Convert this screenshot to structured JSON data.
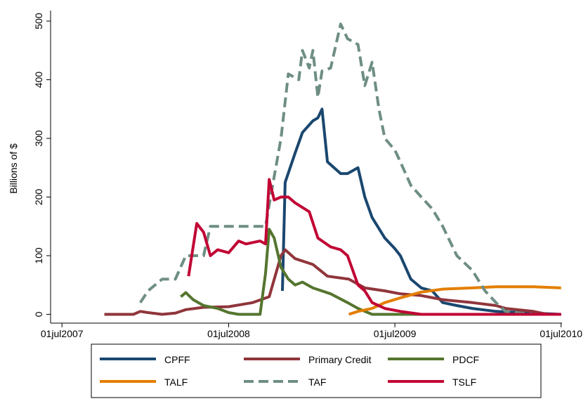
{
  "chart_data": {
    "type": "line",
    "y_label": "Billions of $",
    "xlim": [
      "2007-06-06",
      "2010-07-03"
    ],
    "xticks": [
      {
        "value": "2007-07-01",
        "label": "01jul2007"
      },
      {
        "value": "2008-07-01",
        "label": "01jul2008"
      },
      {
        "value": "2009-07-01",
        "label": "01jul2009"
      },
      {
        "value": "2010-07-01",
        "label": "01jul2010"
      }
    ],
    "ylim": [
      -15,
      518
    ],
    "yticks": [
      0,
      100,
      200,
      300,
      400,
      500
    ],
    "legend": "bottom",
    "series": [
      {
        "name": "CPFF",
        "color": "#1a476f",
        "dashed": false,
        "x": [
          "2008-10-27",
          "2008-11-02",
          "2008-11-24",
          "2008-12-10",
          "2009-01-02",
          "2009-01-13",
          "2009-01-22",
          "2009-02-03",
          "2009-03-04",
          "2009-03-19",
          "2009-04-11",
          "2009-04-26",
          "2009-05-12",
          "2009-06-09",
          "2009-07-01",
          "2009-07-13",
          "2009-08-05",
          "2009-08-28",
          "2009-09-21",
          "2009-10-14",
          "2009-11-14",
          "2009-12-18",
          "2010-02-08",
          "2010-05-01",
          "2010-07-01"
        ],
        "values": [
          40,
          225,
          275,
          310,
          330,
          335,
          350,
          260,
          240,
          240,
          250,
          200,
          165,
          130,
          112,
          100,
          60,
          45,
          40,
          20,
          15,
          10,
          5,
          2,
          0
        ]
      },
      {
        "name": "Primary Credit",
        "color": "#90353b",
        "dashed": false,
        "x": [
          "2007-10-02",
          "2007-12-05",
          "2007-12-20",
          "2008-01-06",
          "2008-02-06",
          "2008-03-06",
          "2008-03-29",
          "2008-05-07",
          "2008-07-01",
          "2008-08-23",
          "2008-09-28",
          "2008-10-24",
          "2008-11-02",
          "2008-11-24",
          "2009-01-02",
          "2009-02-03",
          "2009-03-22",
          "2009-04-26",
          "2009-06-09",
          "2009-07-13",
          "2009-08-28",
          "2009-10-14",
          "2009-12-18",
          "2010-02-08",
          "2010-03-01",
          "2010-05-01",
          "2010-06-01",
          "2010-07-01"
        ],
        "values": [
          0,
          0,
          5,
          3,
          0,
          2,
          8,
          12,
          13,
          20,
          30,
          100,
          110,
          95,
          85,
          65,
          60,
          45,
          40,
          35,
          32,
          25,
          20,
          15,
          10,
          5,
          0,
          0
        ]
      },
      {
        "name": "PDCF",
        "color": "#55752f",
        "dashed": false,
        "x": [
          "2008-03-18",
          "2008-03-29",
          "2008-04-14",
          "2008-05-07",
          "2008-06-07",
          "2008-07-01",
          "2008-07-23",
          "2008-09-08",
          "2008-09-20",
          "2008-09-28",
          "2008-10-09",
          "2008-10-24",
          "2008-11-09",
          "2008-11-24",
          "2008-12-10",
          "2009-01-02",
          "2009-02-10",
          "2009-03-19",
          "2009-04-11",
          "2009-05-12",
          "2010-07-01"
        ],
        "values": [
          30,
          37,
          25,
          15,
          10,
          3,
          0,
          0,
          70,
          145,
          130,
          80,
          60,
          50,
          55,
          45,
          35,
          20,
          10,
          0,
          0
        ]
      },
      {
        "name": "TALF",
        "color": "#e37e00",
        "dashed": false,
        "x": [
          "2009-03-22",
          "2009-04-11",
          "2009-05-12",
          "2009-06-09",
          "2009-07-13",
          "2009-08-28",
          "2009-10-14",
          "2009-12-18",
          "2010-02-08",
          "2010-05-01",
          "2010-07-01"
        ],
        "values": [
          0,
          5,
          10,
          20,
          28,
          38,
          43,
          45,
          47,
          47,
          45
        ]
      },
      {
        "name": "TAF",
        "color": "#6e8e84",
        "dashed": true,
        "x": [
          "2007-12-20",
          "2008-01-06",
          "2008-02-06",
          "2008-03-06",
          "2008-03-29",
          "2008-05-07",
          "2008-05-22",
          "2008-09-20",
          "2008-10-01",
          "2008-10-24",
          "2008-11-09",
          "2008-12-02",
          "2008-12-10",
          "2008-12-25",
          "2009-01-02",
          "2009-01-13",
          "2009-01-22",
          "2009-02-10",
          "2009-03-04",
          "2009-03-19",
          "2009-04-11",
          "2009-04-26",
          "2009-05-12",
          "2009-05-27",
          "2009-06-09",
          "2009-07-01",
          "2009-07-13",
          "2009-08-05",
          "2009-08-28",
          "2009-09-21",
          "2009-10-14",
          "2009-11-14",
          "2009-12-18",
          "2010-01-15",
          "2010-02-08",
          "2010-03-01",
          "2010-05-01",
          "2010-07-01"
        ],
        "values": [
          20,
          40,
          60,
          60,
          100,
          100,
          150,
          150,
          200,
          300,
          410,
          400,
          450,
          420,
          450,
          370,
          415,
          420,
          495,
          470,
          460,
          390,
          430,
          350,
          300,
          280,
          260,
          220,
          200,
          180,
          150,
          100,
          75,
          40,
          20,
          5,
          0,
          0
        ]
      },
      {
        "name": "TSLF",
        "color": "#c10534",
        "dashed": false,
        "x": [
          "2008-04-04",
          "2008-04-22",
          "2008-05-07",
          "2008-05-22",
          "2008-06-07",
          "2008-07-01",
          "2008-07-23",
          "2008-08-08",
          "2008-09-08",
          "2008-09-20",
          "2008-09-28",
          "2008-10-09",
          "2008-10-24",
          "2008-11-09",
          "2008-11-24",
          "2008-12-25",
          "2009-01-13",
          "2009-02-10",
          "2009-03-04",
          "2009-03-19",
          "2009-04-11",
          "2009-04-26",
          "2009-05-12",
          "2009-06-09",
          "2009-07-13",
          "2009-08-28",
          "2010-07-01"
        ],
        "values": [
          65,
          155,
          140,
          100,
          110,
          105,
          125,
          120,
          125,
          120,
          230,
          195,
          200,
          200,
          190,
          175,
          130,
          115,
          110,
          100,
          50,
          40,
          20,
          10,
          5,
          0,
          0
        ]
      }
    ]
  }
}
